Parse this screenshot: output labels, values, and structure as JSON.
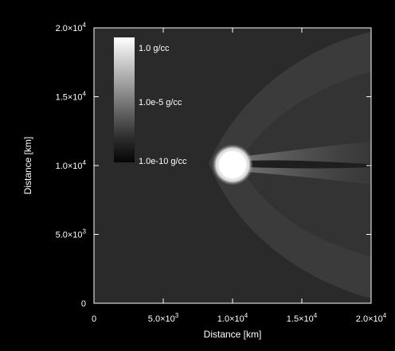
{
  "chart_data": {
    "type": "heatmap",
    "title": "",
    "xlabel": "Distance [km]",
    "ylabel": "Distance [km]",
    "xlim": [
      0,
      20000
    ],
    "ylim": [
      0,
      20000
    ],
    "x_ticks": [
      {
        "value": 0,
        "label": "0"
      },
      {
        "value": 5000,
        "label": "5.0×10",
        "exp": "3"
      },
      {
        "value": 10000,
        "label": "1.0×10",
        "exp": "4"
      },
      {
        "value": 15000,
        "label": "1.5×10",
        "exp": "4"
      },
      {
        "value": 20000,
        "label": "2.0×10",
        "exp": "4"
      }
    ],
    "y_ticks": [
      {
        "value": 0,
        "label": "0"
      },
      {
        "value": 5000,
        "label": "5.0×10",
        "exp": "3"
      },
      {
        "value": 10000,
        "label": "1.0×10",
        "exp": "4"
      },
      {
        "value": 15000,
        "label": "1.5×10",
        "exp": "4"
      },
      {
        "value": 20000,
        "label": "2.0×10",
        "exp": "4"
      }
    ],
    "colorbar": {
      "scale": "log",
      "min": "1.0e-10 g/cc",
      "max": "1.0 g/cc",
      "labels": [
        {
          "text": "1.0 g/cc",
          "value": 1.0
        },
        {
          "text": "1.0e-5 g/cc",
          "value": 1e-05
        },
        {
          "text": "1.0e-10 g/cc",
          "value": 1e-10
        }
      ]
    },
    "features": {
      "body": {
        "center_x": 10000,
        "center_y": 10000,
        "radius": 800
      },
      "bow_shock_vertex_x": 8000,
      "tail_direction": "+x"
    },
    "colors": {
      "background": "#000000",
      "plot_background": "#2a2a2a",
      "bow_shock_region": "#3d3d3d",
      "body": "#ffffff"
    }
  }
}
